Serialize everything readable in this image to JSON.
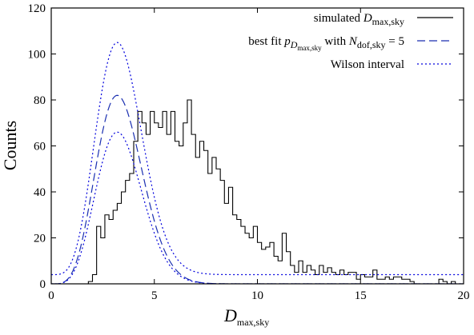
{
  "chart_data": {
    "type": "line",
    "xlabel": "D",
    "xlabel_sub": "max,sky",
    "ylabel": "Counts",
    "xlim": [
      0,
      20
    ],
    "ylim": [
      0,
      120
    ],
    "xticks": [
      0,
      5,
      10,
      15,
      20
    ],
    "yticks": [
      0,
      20,
      40,
      60,
      80,
      100,
      120
    ],
    "grid": false,
    "legend_position": "top-right",
    "legend": {
      "simulated": {
        "prefix": "simulated ",
        "main": "D",
        "sub": "max,sky"
      },
      "fit": {
        "p1": "best fit ",
        "p2": "p",
        "p3": "D",
        "p4": "max,sky",
        "p5": " with ",
        "p6": "N",
        "p7": "dof,sky",
        "p8": " = 5"
      },
      "wilson": {
        "label": "Wilson interval"
      }
    },
    "series": [
      {
        "name": "simulated D_max,sky",
        "style": "step",
        "color": "#000000",
        "bin_start": 0,
        "bin_width": 0.2,
        "values": [
          0,
          0,
          0,
          0,
          0,
          0,
          0,
          0,
          0,
          1,
          4,
          25,
          20,
          30,
          28,
          32,
          35,
          40,
          45,
          48,
          62,
          75,
          70,
          65,
          75,
          70,
          68,
          75,
          65,
          75,
          62,
          60,
          70,
          80,
          65,
          55,
          62,
          58,
          48,
          55,
          50,
          45,
          35,
          42,
          30,
          28,
          25,
          22,
          20,
          25,
          18,
          15,
          16,
          18,
          12,
          10,
          22,
          14,
          8,
          5,
          10,
          5,
          8,
          6,
          4,
          8,
          5,
          7,
          5,
          4,
          6,
          4,
          5,
          5,
          2,
          4,
          3,
          3,
          6,
          2,
          2,
          3,
          2,
          3,
          3,
          2,
          2,
          1,
          0,
          0,
          0,
          0,
          0,
          0,
          2,
          1,
          0,
          1,
          0,
          0
        ]
      },
      {
        "name": "best fit p_D_max,sky with N_dof,sky = 5",
        "style": "dashed",
        "color": "#1a2fb0",
        "peak": 82,
        "x_mode": 3.2,
        "k": 5
      },
      {
        "name": "Wilson interval upper",
        "style": "dotted",
        "color": "#0000dd",
        "peak": 101,
        "x_mode": 3.2,
        "k": 5,
        "offset": 4
      },
      {
        "name": "Wilson interval lower",
        "style": "dotted",
        "color": "#0000dd",
        "peak": 66,
        "x_mode": 3.2,
        "k": 5,
        "offset": 0
      }
    ]
  }
}
